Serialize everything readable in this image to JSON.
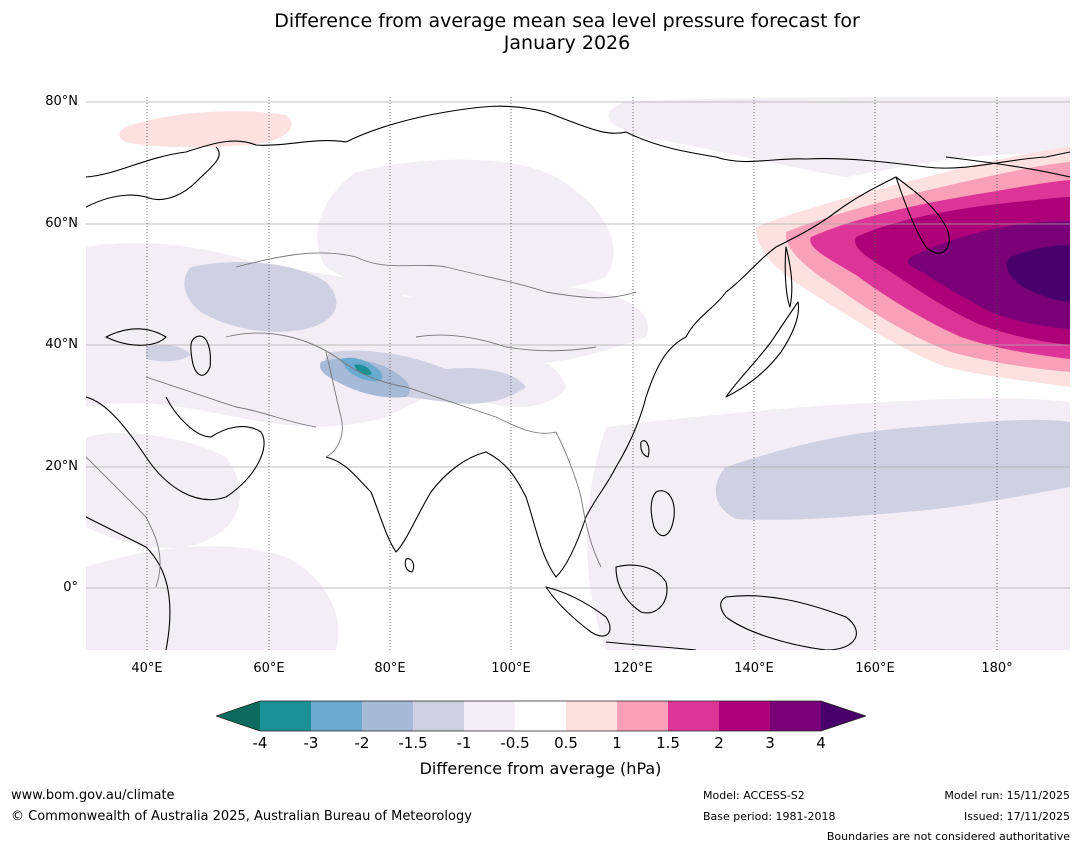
{
  "title": {
    "line1": "Difference from average mean sea level pressure forecast for",
    "line2": "January 2026"
  },
  "map": {
    "lat_labels": [
      "80°N",
      "60°N",
      "40°N",
      "20°N",
      "0°"
    ],
    "lon_labels": [
      "40°E",
      "60°E",
      "80°E",
      "100°E",
      "120°E",
      "140°E",
      "160°E",
      "180°"
    ]
  },
  "legend": {
    "ticks": [
      "-4",
      "-3",
      "-2",
      "-1.5",
      "-1",
      "-0.5",
      "0.5",
      "1",
      "1.5",
      "2",
      "3",
      "4"
    ],
    "label": "Difference from average (hPa)",
    "colors": {
      "below_minus4": "#0c6b5e",
      "minus4_to_minus3": "#1b9096",
      "minus3_to_minus2": "#6aaad0",
      "minus2_to_minus1_5": "#a6b9d6",
      "minus1_5_to_minus1": "#d0d0e3",
      "minus1_to_minus0_5": "#f3eef6",
      "minus0_5_to_0_5": "#ffffff",
      "0_5_to_1": "#fde0e0",
      "1_to_1_5": "#f7a0b8",
      "1_5_to_2": "#dd3597",
      "2_to_3": "#ad0078",
      "3_to_4": "#790077",
      "above_4": "#4a006a"
    }
  },
  "footer": {
    "website": "www.bom.gov.au/climate",
    "copyright": "© Commonwealth of Australia 2025, Australian Bureau of Meteorology",
    "model": "Model: ACCESS-S2",
    "base_period": "Base period: 1981-2018",
    "model_run": "Model run: 15/11/2025",
    "issued": "Issued: 17/11/2025",
    "disclaimer": "Boundaries are not considered authoritative"
  }
}
